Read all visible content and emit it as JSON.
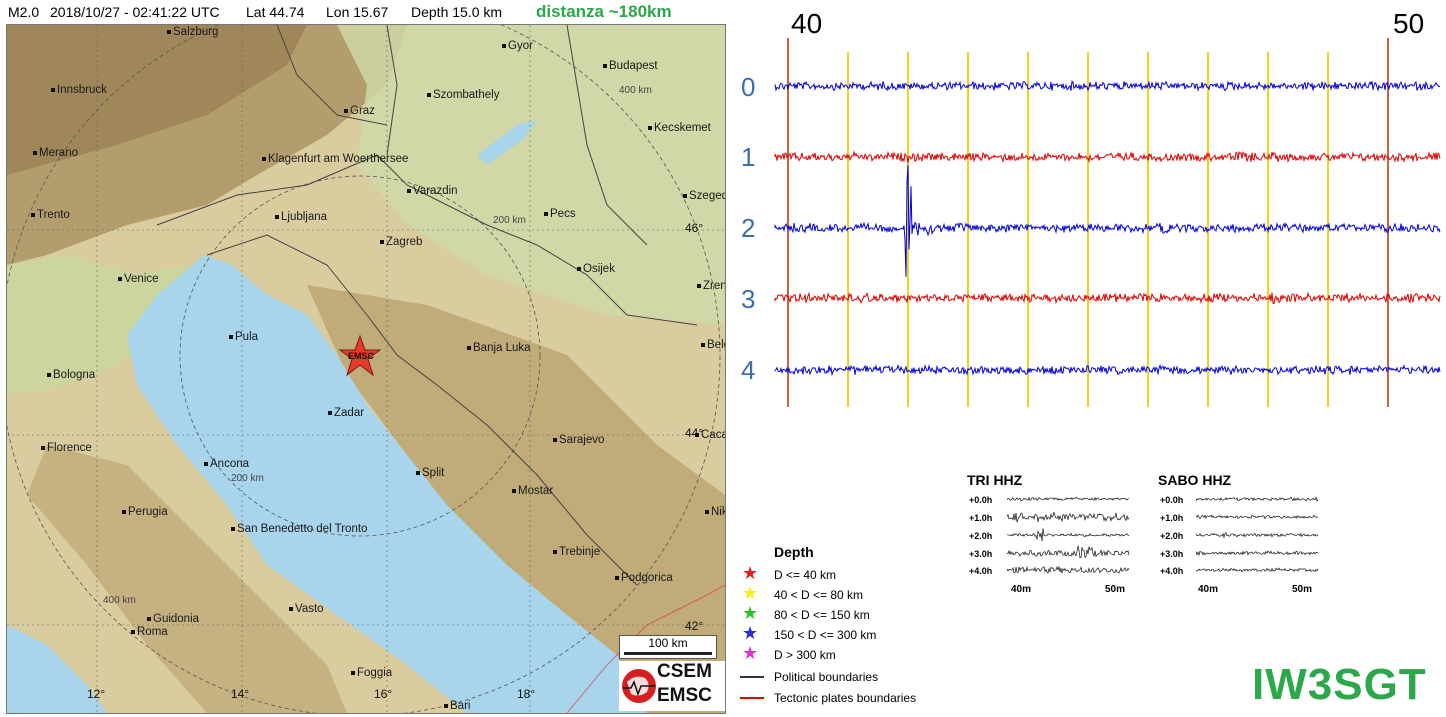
{
  "header": {
    "magnitude": "M2.0",
    "datetime": "2018/10/27 - 02:41:22 UTC",
    "lat": "Lat 44.74",
    "lon": "Lon 15.67",
    "depth": "Depth  15.0 km",
    "distance": "distanza ~180km"
  },
  "map": {
    "cities": [
      {
        "name": "Salzburg"
      },
      {
        "name": "Gyor"
      },
      {
        "name": "Budapest"
      },
      {
        "name": "Innsbruck"
      },
      {
        "name": "Graz"
      },
      {
        "name": "Szombathely"
      },
      {
        "name": "Kecskemet"
      },
      {
        "name": "Merano"
      },
      {
        "name": "Klagenfurt am Woerthersee"
      },
      {
        "name": "Varazdin"
      },
      {
        "name": "Szeged"
      },
      {
        "name": "Trento"
      },
      {
        "name": "Ljubljana"
      },
      {
        "name": "Pecs"
      },
      {
        "name": "Zagreb"
      },
      {
        "name": "Venice"
      },
      {
        "name": "Osijek"
      },
      {
        "name": "Zrenjanin"
      },
      {
        "name": "Pula"
      },
      {
        "name": "Banja Luka"
      },
      {
        "name": "Belgrade"
      },
      {
        "name": "Bologna"
      },
      {
        "name": "Zadar"
      },
      {
        "name": "Florence"
      },
      {
        "name": "Sarajevo"
      },
      {
        "name": "Cacak"
      },
      {
        "name": "Ancona"
      },
      {
        "name": "Split"
      },
      {
        "name": "Mostar"
      },
      {
        "name": "Perugia"
      },
      {
        "name": "Niksic"
      },
      {
        "name": "San Benedetto del Tronto"
      },
      {
        "name": "Trebinje"
      },
      {
        "name": "Podgorica"
      },
      {
        "name": "Guidonia"
      },
      {
        "name": "Roma"
      },
      {
        "name": "Vasto"
      },
      {
        "name": "Foggia"
      },
      {
        "name": "Bari"
      }
    ],
    "lat_labels": [
      "46°",
      "44°",
      "42°"
    ],
    "lon_labels": [
      "12°",
      "14°",
      "16°",
      "18°"
    ],
    "ring_labels": [
      "400 km",
      "200 km",
      "200 km",
      "400 km"
    ],
    "epicenter_label": "EMSC",
    "scale_bar": "100 km",
    "logo_top": "CSEM",
    "logo_bottom": "EMSC",
    "colors": {
      "sea": "#a8d4ec",
      "land": "#d7c79d",
      "epicenter": "#e83a2a"
    }
  },
  "seismogram": {
    "start_minute": "40",
    "end_minute": "50",
    "rows": [
      {
        "label": "0",
        "color": "#0000dd"
      },
      {
        "label": "1",
        "color": "#e00000"
      },
      {
        "label": "2",
        "color": "#0000dd"
      },
      {
        "label": "3",
        "color": "#e00000"
      },
      {
        "label": "4",
        "color": "#0000dd"
      }
    ],
    "label_color": "#3a6fa8",
    "minute_line_color": "#f2d21a",
    "boundary_line_color": "#b03000"
  },
  "legend": {
    "title": "Depth",
    "depth_classes": [
      {
        "symbol": "★",
        "color": "#e32020",
        "label": "D <= 40 km"
      },
      {
        "symbol": "★",
        "color": "#f2f21a",
        "label": "40 < D <= 80 km"
      },
      {
        "symbol": "★",
        "color": "#27c427",
        "label": "80 < D <= 150 km"
      },
      {
        "symbol": "★",
        "color": "#2a2ad8",
        "label": "150 < D <= 300 km"
      },
      {
        "symbol": "★",
        "color": "#d534d5",
        "label": "D > 300 km"
      }
    ],
    "boundaries": [
      {
        "color": "#333333",
        "label": "Political boundaries"
      },
      {
        "color": "#e00000",
        "label": "Tectonic plates boundaries"
      }
    ]
  },
  "helicorders": [
    {
      "title": "TRI HHZ",
      "rows": [
        "+0.0h",
        "+1.0h",
        "+2.0h",
        "+3.0h",
        "+4.0h"
      ],
      "axis": [
        "40m",
        "50m"
      ]
    },
    {
      "title": "SABO HHZ",
      "rows": [
        "+0.0h",
        "+1.0h",
        "+2.0h",
        "+3.0h",
        "+4.0h"
      ],
      "axis": [
        "40m",
        "50m"
      ]
    }
  ],
  "callsign": "IW3SGT"
}
